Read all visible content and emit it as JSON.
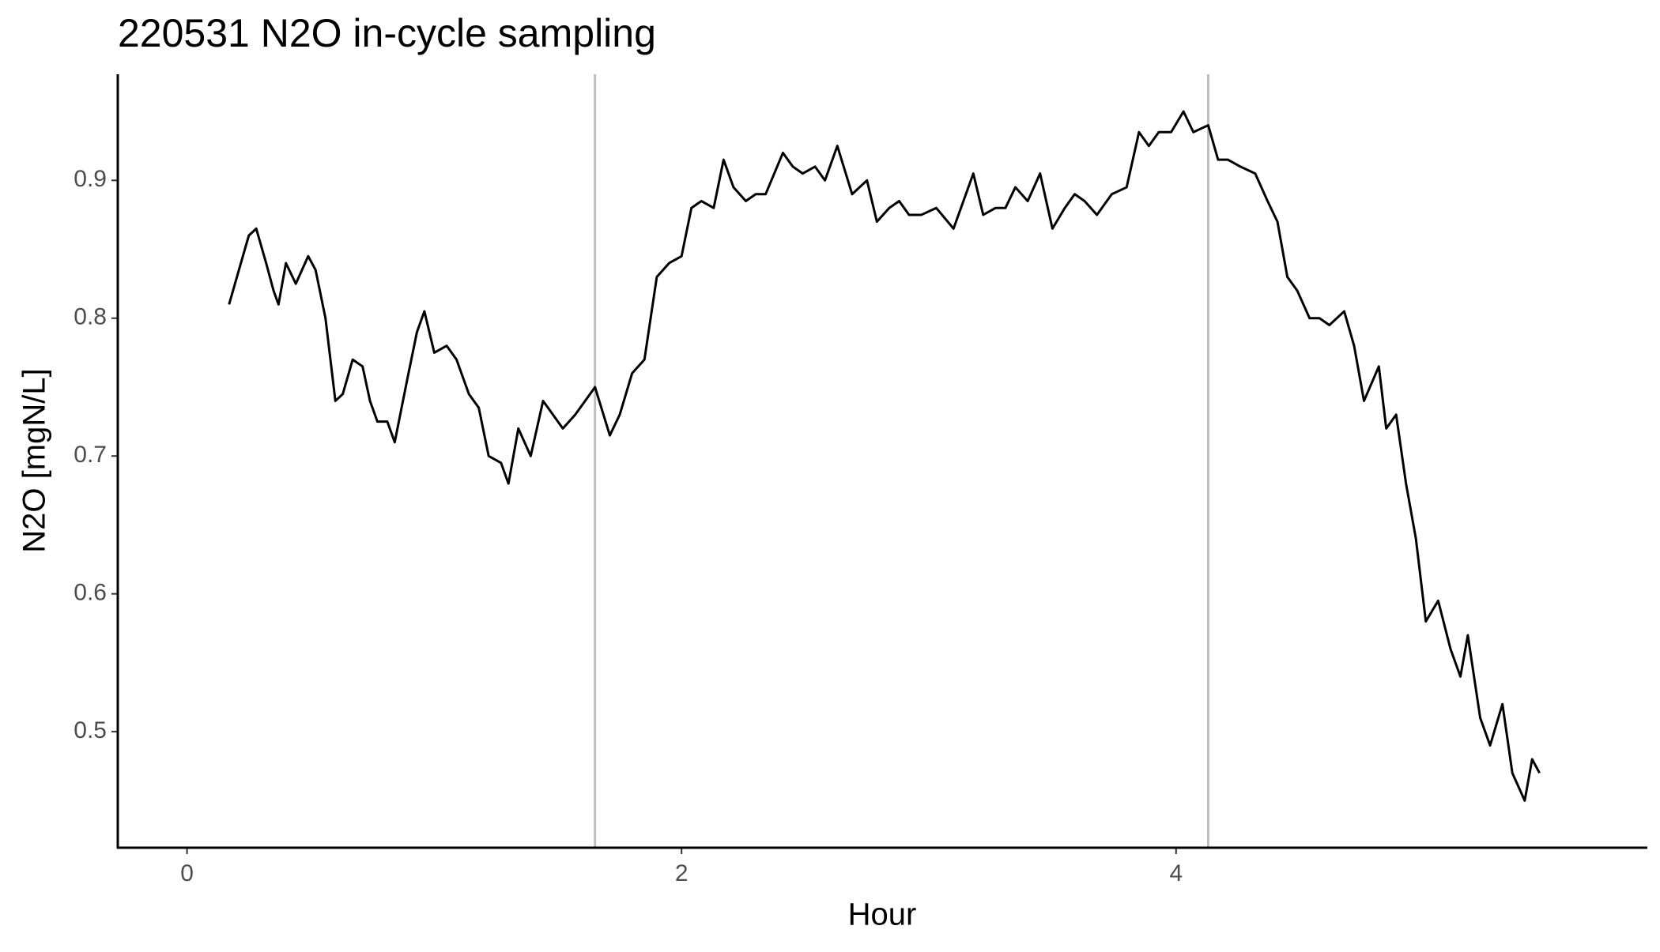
{
  "chart_data": {
    "type": "line",
    "title": "220531 N2O in-cycle sampling",
    "x_label": "Hour",
    "y_label": "N2O [mgN/L]",
    "xlim": [
      -0.28,
      5.906
    ],
    "ylim": [
      0.4158,
      0.977
    ],
    "xticks": [
      0,
      2,
      4
    ],
    "yticks": [
      0.5,
      0.6,
      0.7,
      0.8,
      0.9
    ],
    "vlines": [
      1.65,
      4.13
    ],
    "vline_color": "#bebebe",
    "grid": false,
    "x": [
      0.17,
      0.21,
      0.25,
      0.28,
      0.32,
      0.35,
      0.37,
      0.4,
      0.44,
      0.49,
      0.52,
      0.56,
      0.6,
      0.63,
      0.67,
      0.71,
      0.74,
      0.77,
      0.81,
      0.84,
      0.89,
      0.93,
      0.96,
      1.0,
      1.05,
      1.09,
      1.14,
      1.18,
      1.22,
      1.27,
      1.3,
      1.34,
      1.39,
      1.44,
      1.48,
      1.52,
      1.57,
      1.61,
      1.65,
      1.71,
      1.75,
      1.8,
      1.85,
      1.9,
      1.95,
      2.0,
      2.04,
      2.08,
      2.13,
      2.17,
      2.21,
      2.26,
      2.3,
      2.34,
      2.41,
      2.45,
      2.49,
      2.54,
      2.58,
      2.63,
      2.69,
      2.75,
      2.79,
      2.84,
      2.88,
      2.92,
      2.97,
      3.03,
      3.1,
      3.14,
      3.18,
      3.22,
      3.27,
      3.31,
      3.35,
      3.4,
      3.45,
      3.5,
      3.55,
      3.59,
      3.63,
      3.68,
      3.74,
      3.8,
      3.85,
      3.89,
      3.93,
      3.98,
      4.03,
      4.07,
      4.13,
      4.17,
      4.21,
      4.26,
      4.32,
      4.37,
      4.41,
      4.45,
      4.49,
      4.54,
      4.58,
      4.62,
      4.68,
      4.72,
      4.76,
      4.82,
      4.85,
      4.89,
      4.93,
      4.97,
      5.01,
      5.06,
      5.11,
      5.15,
      5.18,
      5.23,
      5.27,
      5.32,
      5.36,
      5.41,
      5.44,
      5.47
    ],
    "series": [
      {
        "color": "#000000",
        "values": [
          0.81,
          0.835,
          0.86,
          0.865,
          0.84,
          0.82,
          0.81,
          0.84,
          0.825,
          0.845,
          0.835,
          0.8,
          0.74,
          0.745,
          0.77,
          0.765,
          0.74,
          0.725,
          0.725,
          0.71,
          0.755,
          0.79,
          0.805,
          0.775,
          0.78,
          0.77,
          0.745,
          0.735,
          0.7,
          0.695,
          0.68,
          0.72,
          0.7,
          0.74,
          0.73,
          0.72,
          0.73,
          0.74,
          0.75,
          0.715,
          0.73,
          0.76,
          0.77,
          0.83,
          0.84,
          0.845,
          0.88,
          0.885,
          0.88,
          0.915,
          0.895,
          0.885,
          0.89,
          0.89,
          0.92,
          0.91,
          0.905,
          0.91,
          0.9,
          0.925,
          0.89,
          0.9,
          0.87,
          0.88,
          0.885,
          0.875,
          0.875,
          0.88,
          0.865,
          0.885,
          0.905,
          0.875,
          0.88,
          0.88,
          0.895,
          0.885,
          0.905,
          0.865,
          0.88,
          0.89,
          0.885,
          0.875,
          0.89,
          0.895,
          0.935,
          0.925,
          0.935,
          0.935,
          0.95,
          0.935,
          0.94,
          0.915,
          0.915,
          0.91,
          0.905,
          0.885,
          0.87,
          0.83,
          0.82,
          0.8,
          0.8,
          0.795,
          0.805,
          0.78,
          0.74,
          0.765,
          0.72,
          0.73,
          0.68,
          0.64,
          0.58,
          0.595,
          0.56,
          0.54,
          0.57,
          0.51,
          0.49,
          0.52,
          0.47,
          0.45,
          0.48,
          0.47
        ]
      }
    ]
  }
}
